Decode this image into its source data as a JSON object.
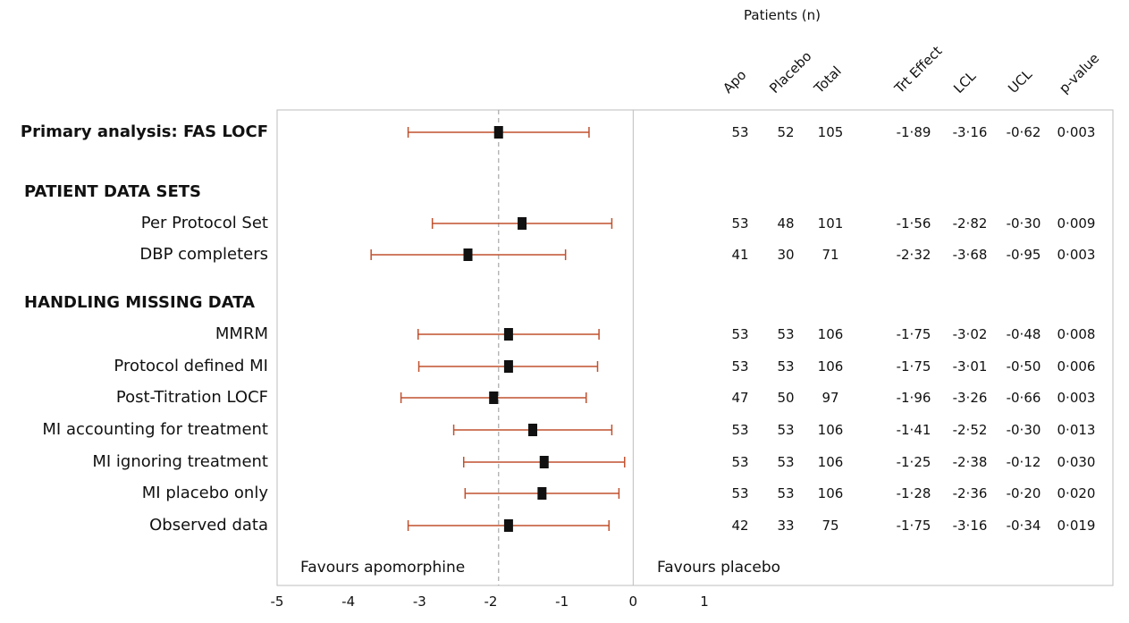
{
  "chart_data": {
    "type": "forest",
    "patients_header": "Patients (n)",
    "columns": [
      "Apo",
      "Placebo",
      "Total",
      "Trt Effect",
      "LCL",
      "UCL",
      "p-value"
    ],
    "rows": [
      {
        "label": "Primary analysis: FAS LOCF",
        "bold": true,
        "apo": "53",
        "placebo": "52",
        "total": "105",
        "trt": "-1·89",
        "lcl": "-3·16",
        "ucl": "-0·62",
        "p": "0·003",
        "est": -1.89,
        "lo": -3.16,
        "hi": -0.62
      },
      {
        "label": "PATIENT DATA SETS",
        "section": true
      },
      {
        "label": "Per Protocol Set",
        "apo": "53",
        "placebo": "48",
        "total": "101",
        "trt": "-1·56",
        "lcl": "-2·82",
        "ucl": "-0·30",
        "p": "0·009",
        "est": -1.56,
        "lo": -2.82,
        "hi": -0.3
      },
      {
        "label": "DBP completers",
        "apo": "41",
        "placebo": "30",
        "total": "71",
        "trt": "-2·32",
        "lcl": "-3·68",
        "ucl": "-0·95",
        "p": "0·003",
        "est": -2.32,
        "lo": -3.68,
        "hi": -0.95
      },
      {
        "label": "HANDLING MISSING DATA",
        "section": true
      },
      {
        "label": "MMRM",
        "apo": "53",
        "placebo": "53",
        "total": "106",
        "trt": "-1·75",
        "lcl": "-3·02",
        "ucl": "-0·48",
        "p": "0·008",
        "est": -1.75,
        "lo": -3.02,
        "hi": -0.48
      },
      {
        "label": "Protocol defined MI",
        "apo": "53",
        "placebo": "53",
        "total": "106",
        "trt": "-1·75",
        "lcl": "-3·01",
        "ucl": "-0·50",
        "p": "0·006",
        "est": -1.75,
        "lo": -3.01,
        "hi": -0.5
      },
      {
        "label": "Post-Titration LOCF",
        "apo": "47",
        "placebo": "50",
        "total": "97",
        "trt": "-1·96",
        "lcl": "-3·26",
        "ucl": "-0·66",
        "p": "0·003",
        "est": -1.96,
        "lo": -3.26,
        "hi": -0.66
      },
      {
        "label": "MI accounting for treatment",
        "apo": "53",
        "placebo": "53",
        "total": "106",
        "trt": "-1·41",
        "lcl": "-2·52",
        "ucl": "-0·30",
        "p": "0·013",
        "est": -1.41,
        "lo": -2.52,
        "hi": -0.3
      },
      {
        "label": "MI ignoring treatment",
        "apo": "53",
        "placebo": "53",
        "total": "106",
        "trt": "-1·25",
        "lcl": "-2·38",
        "ucl": "-0·12",
        "p": "0·030",
        "est": -1.25,
        "lo": -2.38,
        "hi": -0.12
      },
      {
        "label": "MI placebo only",
        "apo": "53",
        "placebo": "53",
        "total": "106",
        "trt": "-1·28",
        "lcl": "-2·36",
        "ucl": "-0·20",
        "p": "0·020",
        "est": -1.28,
        "lo": -2.36,
        "hi": -0.2
      },
      {
        "label": "Observed data",
        "apo": "42",
        "placebo": "33",
        "total": "75",
        "trt": "-1·75",
        "lcl": "-3·16",
        "ucl": "-0·34",
        "p": "0·019",
        "est": -1.75,
        "lo": -3.16,
        "hi": -0.34
      }
    ],
    "reference_line": -1.89,
    "null_line": 0,
    "xlim": [
      -5,
      1
    ],
    "x_ticks": [
      "-5",
      "-4",
      "-3",
      "-2",
      "-1",
      "0",
      "1"
    ],
    "favours_left": "Favours apomorphine",
    "favours_right": "Favours placebo",
    "ci_color": "#c0502e",
    "marker_color": "#111111"
  }
}
